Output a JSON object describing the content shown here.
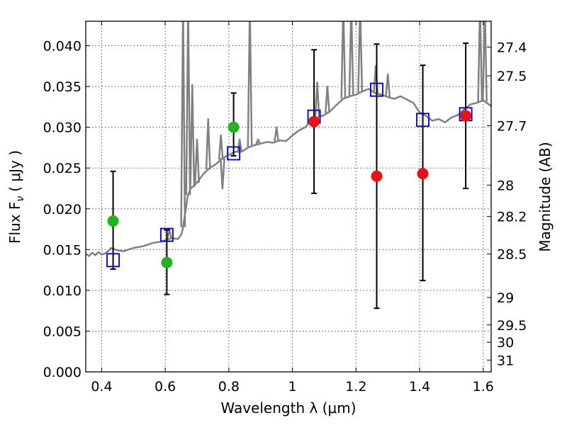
{
  "chart_data": {
    "type": "scatter",
    "title": "",
    "xlabel": "Wavelength  λ (μm)",
    "ylabel": "Flux  F",
    "ylabel_sub": "ν",
    "ylabel_unit": "( μJy )",
    "y2label": "Magnitude (AB)",
    "xlim": [
      0.35,
      1.625
    ],
    "ylim": [
      0.0,
      0.043
    ],
    "grid": true,
    "x_ticks": [
      0.4,
      0.6,
      0.8,
      1.0,
      1.2,
      1.4,
      1.6
    ],
    "x_tick_labels": [
      "0.4",
      "0.6",
      "0.8",
      "1",
      "1.2",
      "1.4",
      "1.6"
    ],
    "y_ticks": [
      0.0,
      0.005,
      0.01,
      0.015,
      0.02,
      0.025,
      0.03,
      0.035,
      0.04
    ],
    "y_tick_labels": [
      "0.000",
      "0.005",
      "0.010",
      "0.015",
      "0.020",
      "0.025",
      "0.030",
      "0.035",
      "0.040"
    ],
    "mag_ticks": [
      27.4,
      27.5,
      27.7,
      28,
      28.2,
      28.5,
      29,
      29.5,
      30,
      31
    ],
    "mag_tick_labels": [
      "27.4",
      "27.5",
      "27.7",
      "28",
      "28.2",
      "28.5",
      "29",
      "29.5",
      "30",
      "31"
    ],
    "colors": {
      "model": "#808080",
      "model_points": "#1010c8",
      "green_points": "#1fb51f",
      "red_points": "#ee1111",
      "errorbars": "#000000",
      "grid": "#555555"
    },
    "model_spectrum": {
      "x": [
        0.35,
        0.36,
        0.37,
        0.38,
        0.39,
        0.4,
        0.41,
        0.42,
        0.43,
        0.45,
        0.47,
        0.5,
        0.53,
        0.56,
        0.59,
        0.62,
        0.64,
        0.65,
        0.655,
        0.66,
        0.665,
        0.67,
        0.68,
        0.69,
        0.7,
        0.72,
        0.74,
        0.76,
        0.78,
        0.8,
        0.82,
        0.84,
        0.86,
        0.88,
        0.9,
        0.92,
        0.94,
        0.96,
        0.98,
        1.0,
        1.02,
        1.04,
        1.06,
        1.08,
        1.1,
        1.12,
        1.14,
        1.16,
        1.18,
        1.2,
        1.22,
        1.24,
        1.26,
        1.28,
        1.3,
        1.32,
        1.34,
        1.36,
        1.38,
        1.4,
        1.42,
        1.44,
        1.46,
        1.48,
        1.5,
        1.52,
        1.54,
        1.56,
        1.58,
        1.6,
        1.625
      ],
      "y": [
        0.0145,
        0.0142,
        0.0146,
        0.0143,
        0.0147,
        0.0144,
        0.0145,
        0.0148,
        0.0152,
        0.0149,
        0.0148,
        0.0152,
        0.0154,
        0.0158,
        0.016,
        0.0164,
        0.0163,
        0.0168,
        0.0175,
        0.0188,
        0.02,
        0.0215,
        0.0225,
        0.0228,
        0.0232,
        0.0243,
        0.025,
        0.0255,
        0.0262,
        0.0266,
        0.027,
        0.027,
        0.0275,
        0.0278,
        0.028,
        0.0282,
        0.0281,
        0.0284,
        0.0283,
        0.029,
        0.0296,
        0.03,
        0.0308,
        0.0312,
        0.0315,
        0.032,
        0.0328,
        0.0335,
        0.0338,
        0.034,
        0.0344,
        0.0347,
        0.0342,
        0.034,
        0.0337,
        0.0335,
        0.0338,
        0.0334,
        0.033,
        0.0318,
        0.0314,
        0.0308,
        0.031,
        0.0306,
        0.0312,
        0.0315,
        0.0322,
        0.0328,
        0.033,
        0.0333,
        0.0326
      ]
    },
    "model_spikes": [
      {
        "x": 0.613,
        "y": 0.0175
      },
      {
        "x": 0.656,
        "y": 0.045
      },
      {
        "x": 0.672,
        "y": 0.045
      },
      {
        "x": 0.685,
        "y": 0.0352
      },
      {
        "x": 0.7,
        "y": 0.0285
      },
      {
        "x": 0.735,
        "y": 0.031
      },
      {
        "x": 0.775,
        "y": 0.029
      },
      {
        "x": 0.78,
        "y": 0.0225
      },
      {
        "x": 0.834,
        "y": 0.0285
      },
      {
        "x": 0.866,
        "y": 0.045
      },
      {
        "x": 0.892,
        "y": 0.0285
      },
      {
        "x": 0.95,
        "y": 0.03
      },
      {
        "x": 1.078,
        "y": 0.0355
      },
      {
        "x": 1.11,
        "y": 0.035
      },
      {
        "x": 1.16,
        "y": 0.045
      },
      {
        "x": 1.185,
        "y": 0.045
      },
      {
        "x": 1.213,
        "y": 0.045
      },
      {
        "x": 1.262,
        "y": 0.0375
      },
      {
        "x": 1.3,
        "y": 0.0365
      },
      {
        "x": 1.59,
        "y": 0.045
      },
      {
        "x": 1.605,
        "y": 0.045
      }
    ],
    "model_points": {
      "marker": "open-square",
      "x": [
        0.436,
        0.605,
        0.815,
        1.068,
        1.265,
        1.41,
        1.545
      ],
      "y": [
        0.0137,
        0.0168,
        0.0268,
        0.0313,
        0.0346,
        0.0309,
        0.0316
      ]
    },
    "green_points": {
      "marker": "filled-circle",
      "x": [
        0.436,
        0.605,
        0.815
      ],
      "y": [
        0.0185,
        0.0134,
        0.03
      ]
    },
    "red_points": {
      "marker": "filled-circle",
      "x": [
        1.068,
        1.265,
        1.41,
        1.545
      ],
      "y": [
        0.0307,
        0.024,
        0.0243,
        0.0314
      ]
    },
    "error_bars": {
      "x": [
        0.436,
        0.605,
        0.815,
        1.068,
        1.265,
        1.41,
        1.545
      ],
      "low": [
        0.0126,
        0.0095,
        0.0265,
        0.0219,
        0.0078,
        0.0112,
        0.0225
      ],
      "high": [
        0.0246,
        0.0174,
        0.0342,
        0.0395,
        0.0402,
        0.0376,
        0.0403
      ]
    }
  }
}
